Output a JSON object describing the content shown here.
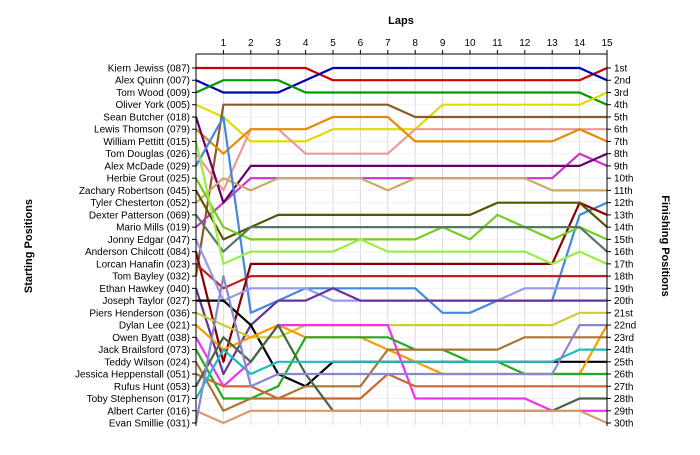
{
  "chart_data": {
    "type": "line",
    "title": "Laps",
    "ylabel_left": "Starting Positions",
    "ylabel_right": "Finishing Positions",
    "x": [
      0,
      1,
      2,
      3,
      4,
      5,
      6,
      7,
      8,
      9,
      10,
      11,
      12,
      13,
      14,
      15
    ],
    "x_ticks": [
      "1",
      "2",
      "3",
      "4",
      "5",
      "6",
      "7",
      "8",
      "9",
      "10",
      "11",
      "12",
      "13",
      "14",
      "15"
    ],
    "ylim": [
      1,
      30
    ],
    "grid": true,
    "start_labels": [
      "Kiern Jewiss (087)",
      "Alex Quinn (007)",
      "Tom Wood (009)",
      "Oliver York (005)",
      "Sean Butcher (018)",
      "Lewis Thomson (079)",
      "William Pettitt (015)",
      "Tom Douglas (026)",
      "Alex McDade (029)",
      "Herbie Grout (025)",
      "Zachary Robertson (045)",
      "Tyler Chesterton (052)",
      "Dexter Patterson (069)",
      "Mario Mills (019)",
      "Jonny Edgar (047)",
      "Anderson Chilcott (084)",
      "Lorcan Hanafin (023)",
      "Tom Bayley (032)",
      "Ethan Hawkey (040)",
      "Joseph Taylor (027)",
      "Piers Henderson (036)",
      "Dylan Lee (021)",
      "Owen Byatt (038)",
      "Jack Brailsford (073)",
      "Teddy Wilson (024)",
      "Jessica Heppenstall (051)",
      "Rufus Hunt (053)",
      "Toby Stephenson (017)",
      "Albert Carter (016)",
      "Evan Smillie (031)"
    ],
    "finish_labels": [
      "1st",
      "2nd",
      "3rd",
      "4th",
      "5th",
      "6th",
      "7th",
      "8th",
      "9th",
      "10th",
      "11th",
      "12th",
      "13th",
      "14th",
      "15th",
      "16th",
      "17th",
      "18th",
      "19th",
      "20th",
      "21st",
      "22nd",
      "23rd",
      "24th",
      "25th",
      "26th",
      "27th",
      "28th",
      "29th",
      "30th"
    ],
    "series": [
      {
        "color": "#cc0000",
        "values": [
          1,
          1,
          1,
          1,
          1,
          2,
          2,
          2,
          2,
          2,
          2,
          2,
          2,
          2,
          2,
          1
        ]
      },
      {
        "color": "#0000aa",
        "values": [
          2,
          3,
          3,
          3,
          2,
          1,
          1,
          1,
          1,
          1,
          1,
          1,
          1,
          1,
          1,
          2
        ]
      },
      {
        "color": "#009900",
        "values": [
          3,
          2,
          2,
          2,
          3,
          3,
          3,
          3,
          3,
          3,
          3,
          3,
          3,
          3,
          3,
          4
        ]
      },
      {
        "color": "#dddd00",
        "values": [
          4,
          5,
          7,
          7,
          7,
          6,
          6,
          6,
          6,
          4,
          4,
          4,
          4,
          4,
          4,
          3
        ]
      },
      {
        "color": "#8b5a2b",
        "values": [
          18,
          4,
          4,
          4,
          4,
          4,
          4,
          4,
          5,
          5,
          5,
          5,
          5,
          5,
          5,
          5
        ]
      },
      {
        "color": "#ee9999",
        "values": [
          8,
          11,
          6,
          6,
          8,
          8,
          8,
          8,
          6,
          6,
          6,
          6,
          6,
          6,
          6,
          6
        ]
      },
      {
        "color": "#e68a00",
        "values": [
          6,
          8,
          6,
          6,
          6,
          5,
          5,
          5,
          7,
          7,
          7,
          7,
          7,
          7,
          6,
          7
        ]
      },
      {
        "color": "#cc33cc",
        "values": [
          14,
          12,
          10,
          10,
          10,
          10,
          10,
          10,
          10,
          10,
          10,
          10,
          10,
          10,
          8,
          9
        ]
      },
      {
        "color": "#660066",
        "values": [
          5,
          12,
          9,
          9,
          9,
          9,
          9,
          9,
          9,
          9,
          9,
          9,
          9,
          9,
          9,
          8
        ]
      },
      {
        "color": "#ccaa66",
        "values": [
          12,
          10,
          11,
          10,
          10,
          10,
          10,
          11,
          10,
          10,
          10,
          10,
          10,
          11,
          11,
          11
        ]
      },
      {
        "color": "#4488dd",
        "values": [
          9,
          5,
          21,
          20,
          19,
          19,
          19,
          19,
          19,
          21,
          21,
          20,
          20,
          20,
          13,
          12
        ]
      },
      {
        "color": "#880000",
        "values": [
          16,
          25,
          17,
          17,
          17,
          17,
          17,
          17,
          17,
          17,
          17,
          17,
          17,
          17,
          12,
          13
        ]
      },
      {
        "color": "#555500",
        "values": [
          11,
          15,
          14,
          13,
          13,
          13,
          13,
          13,
          13,
          13,
          13,
          12,
          12,
          12,
          12,
          14
        ]
      },
      {
        "color": "#77cc22",
        "values": [
          10,
          14,
          15,
          15,
          15,
          15,
          15,
          15,
          15,
          14,
          15,
          13,
          14,
          15,
          14,
          15
        ]
      },
      {
        "color": "#557766",
        "values": [
          13,
          16,
          14,
          14,
          14,
          14,
          14,
          14,
          14,
          14,
          14,
          14,
          14,
          14,
          14,
          16
        ]
      },
      {
        "color": "#99ee44",
        "values": [
          7,
          17,
          16,
          16,
          16,
          16,
          15,
          16,
          16,
          16,
          16,
          16,
          16,
          17,
          16,
          17
        ]
      },
      {
        "color": "#bb2222",
        "values": [
          17,
          19,
          18,
          18,
          18,
          18,
          18,
          18,
          18,
          18,
          18,
          18,
          18,
          18,
          18,
          18
        ]
      },
      {
        "color": "#9999ee",
        "values": [
          15,
          20,
          19,
          19,
          19,
          20,
          20,
          20,
          20,
          20,
          20,
          20,
          19,
          19,
          19,
          19
        ]
      },
      {
        "color": "#663399",
        "values": [
          19,
          26,
          22,
          20,
          20,
          19,
          20,
          20,
          20,
          20,
          20,
          20,
          20,
          20,
          20,
          20
        ]
      },
      {
        "color": "#000000",
        "values": [
          20,
          20,
          22,
          26,
          27,
          25,
          25,
          25,
          25,
          25,
          25,
          25,
          25,
          25,
          25,
          25
        ]
      },
      {
        "color": "#cccc33",
        "values": [
          21,
          22,
          23,
          23,
          22,
          22,
          22,
          22,
          22,
          22,
          22,
          22,
          22,
          22,
          21,
          21
        ]
      },
      {
        "color": "#ff9900",
        "values": [
          22,
          24,
          23,
          22,
          23,
          23,
          23,
          24,
          25,
          26,
          26,
          26,
          26,
          26,
          26,
          22
        ]
      },
      {
        "color": "#ee33ee",
        "values": [
          23,
          27,
          25,
          22,
          22,
          22,
          22,
          22,
          28,
          28,
          28,
          28,
          28,
          29,
          29,
          29
        ]
      },
      {
        "color": "#22aa22",
        "values": [
          24,
          28,
          28,
          27,
          23,
          23,
          23,
          23,
          24,
          24,
          25,
          25,
          26,
          26,
          26,
          26
        ]
      },
      {
        "color": "#aa7733",
        "values": [
          25,
          29,
          28,
          28,
          27,
          27,
          27,
          24,
          24,
          24,
          24,
          24,
          23,
          23,
          23,
          23
        ]
      },
      {
        "color": "#cc6633",
        "values": [
          26,
          27,
          27,
          28,
          28,
          28,
          28,
          26,
          27,
          27,
          27,
          27,
          27,
          27,
          27,
          27
        ]
      },
      {
        "color": "#446644",
        "values": [
          27,
          23,
          25,
          22,
          26,
          29,
          29,
          29,
          29,
          29,
          29,
          29,
          29,
          29,
          28,
          28
        ]
      },
      {
        "color": "#22bbbb",
        "values": [
          28,
          24,
          26,
          25,
          25,
          25,
          25,
          25,
          25,
          25,
          25,
          25,
          25,
          25,
          24,
          24
        ]
      },
      {
        "color": "#dd9966",
        "values": [
          29,
          30,
          29,
          29,
          29,
          29,
          29,
          29,
          29,
          29,
          29,
          29,
          29,
          29,
          29,
          30
        ]
      },
      {
        "color": "#8888cc",
        "values": [
          30,
          18,
          27,
          26,
          26,
          26,
          26,
          26,
          26,
          26,
          26,
          26,
          26,
          26,
          22,
          22
        ]
      }
    ]
  }
}
